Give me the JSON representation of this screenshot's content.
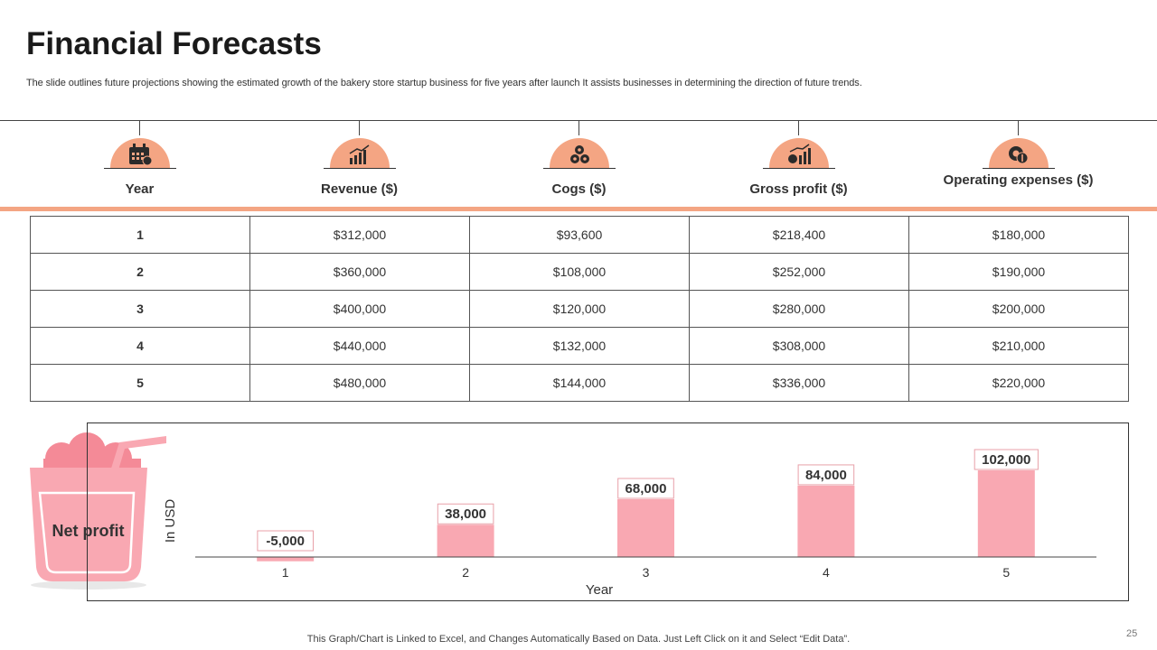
{
  "header": {
    "title": "Financial Forecasts",
    "subtitle": "The slide outlines future projections showing the estimated growth of the bakery store startup business for five years after launch It assists businesses in determining the direction of future trends."
  },
  "table": {
    "columns": [
      {
        "label": "Year",
        "icon": "calendar-icon"
      },
      {
        "label": "Revenue ($)",
        "icon": "bar-growth-icon"
      },
      {
        "label": "Cogs ($)",
        "icon": "gears-icon"
      },
      {
        "label": "Gross profit ($)",
        "icon": "money-chart-icon"
      },
      {
        "label": "Operating expenses ($)",
        "icon": "dollar-gear-icon"
      }
    ],
    "rows": [
      [
        "1",
        "$312,000",
        "$93,600",
        "$218,400",
        "$180,000"
      ],
      [
        "2",
        "$360,000",
        "$108,000",
        "$252,000",
        "$190,000"
      ],
      [
        "3",
        "$400,000",
        "$120,000",
        "$280,000",
        "$200,000"
      ],
      [
        "4",
        "$440,000",
        "$132,000",
        "$308,000",
        "$210,000"
      ],
      [
        "5",
        "$480,000",
        "$144,000",
        "$336,000",
        "$220,000"
      ]
    ]
  },
  "net_profit_label": "Net profit",
  "chart_data": {
    "type": "bar",
    "title": "Net profit",
    "categories": [
      "1",
      "2",
      "3",
      "4",
      "5"
    ],
    "values": [
      -5000,
      38000,
      68000,
      84000,
      102000
    ],
    "data_labels": [
      "-5,000",
      "38,000",
      "68,000",
      "84,000",
      "102,000"
    ],
    "xlabel": "Year",
    "ylabel": "In USD",
    "color": "#f9a8b2",
    "label_border_color": "#e8a0a8"
  },
  "footer": {
    "note": "This Graph/Chart is Linked to Excel, and Changes Automatically Based on Data. Just Left Click on it and Select “Edit Data”.",
    "page_number": "25"
  }
}
